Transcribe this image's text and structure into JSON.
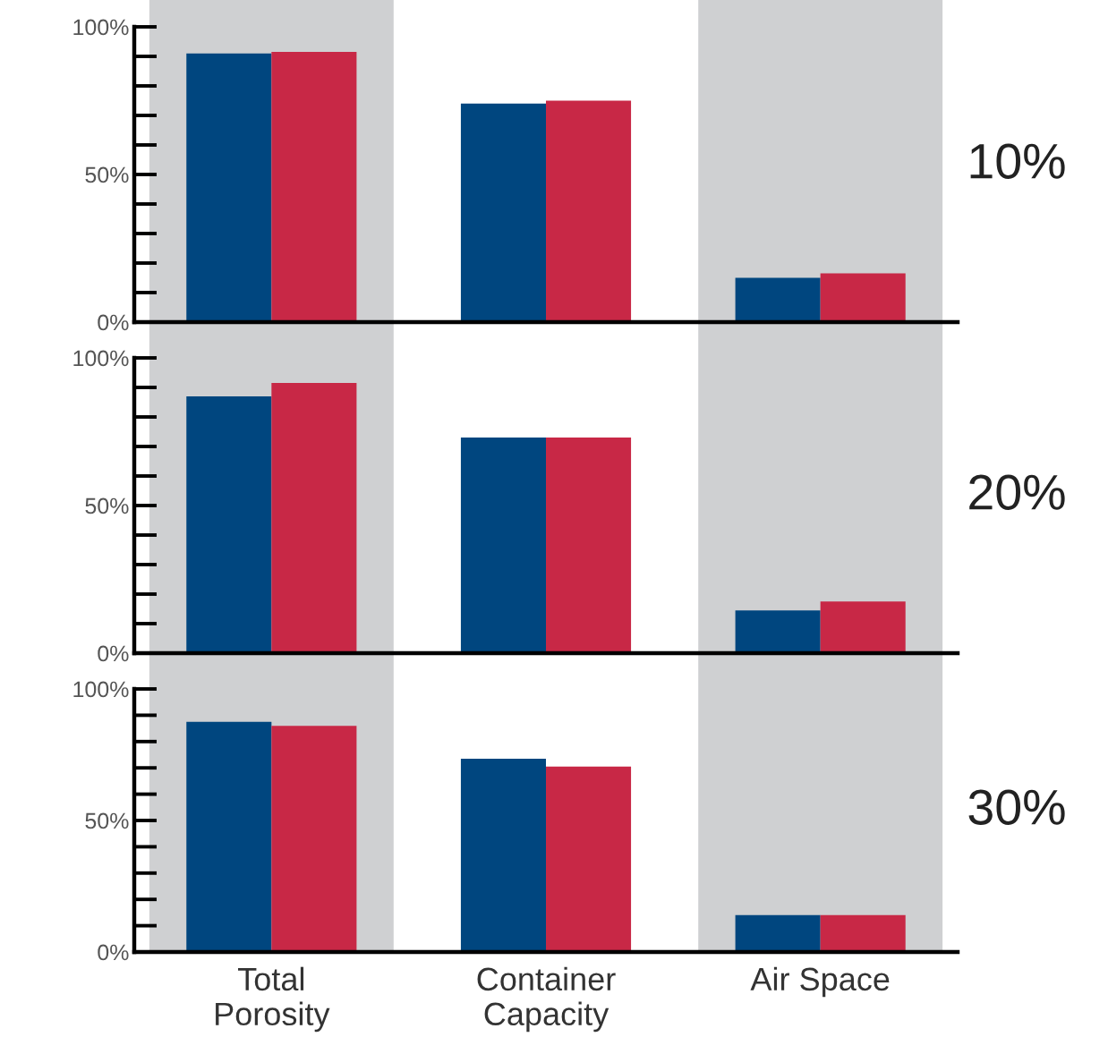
{
  "chart_data": [
    {
      "type": "bar",
      "categories": [
        "Total Porosity",
        "Container Capacity",
        "Air Space"
      ],
      "series": [
        {
          "color": "#00467f",
          "values": [
            91,
            74,
            15
          ]
        },
        {
          "color": "#c82846",
          "values": [
            91.5,
            75,
            16.5
          ]
        }
      ],
      "ylim": [
        0,
        100
      ],
      "yticks": [
        {
          "value": 0,
          "label": "0%"
        },
        {
          "value": 10,
          "label": null
        },
        {
          "value": 20,
          "label": null
        },
        {
          "value": 30,
          "label": null
        },
        {
          "value": 40,
          "label": null
        },
        {
          "value": 50,
          "label": "50%"
        },
        {
          "value": 60,
          "label": null
        },
        {
          "value": 70,
          "label": null
        },
        {
          "value": 80,
          "label": null
        },
        {
          "value": 90,
          "label": null
        },
        {
          "value": 100,
          "label": "100%"
        }
      ],
      "bands": [
        {
          "axis": "x",
          "from": "Total Porosity",
          "to": "Total Porosity",
          "color": "#cfd0d2"
        },
        {
          "axis": "x",
          "from": "Air Space",
          "to": "Air Space",
          "color": "#cfd0d2"
        }
      ],
      "annotations": [
        "10%"
      ],
      "tick_labels": "y",
      "grid": false,
      "legend": false
    },
    {
      "type": "bar",
      "categories": [
        "Total Porosity",
        "Container Capacity",
        "Air Space"
      ],
      "series": [
        {
          "color": "#00467f",
          "values": [
            87,
            73,
            14.5
          ]
        },
        {
          "color": "#c82846",
          "values": [
            91.5,
            73,
            17.5
          ]
        }
      ],
      "ylim": [
        0,
        100
      ],
      "yticks": [
        {
          "value": 0,
          "label": "0%"
        },
        {
          "value": 10,
          "label": null
        },
        {
          "value": 20,
          "label": null
        },
        {
          "value": 30,
          "label": null
        },
        {
          "value": 40,
          "label": null
        },
        {
          "value": 50,
          "label": "50%"
        },
        {
          "value": 60,
          "label": null
        },
        {
          "value": 70,
          "label": null
        },
        {
          "value": 80,
          "label": null
        },
        {
          "value": 90,
          "label": null
        },
        {
          "value": 100,
          "label": "100%"
        }
      ],
      "bands": [
        {
          "axis": "x",
          "from": "Total Porosity",
          "to": "Total Porosity",
          "color": "#cfd0d2"
        },
        {
          "axis": "x",
          "from": "Air Space",
          "to": "Air Space",
          "color": "#cfd0d2"
        }
      ],
      "annotations": [
        "20%"
      ],
      "tick_labels": "y",
      "grid": false,
      "legend": false
    },
    {
      "type": "bar",
      "categories": [
        "Total Porosity",
        "Container Capacity",
        "Air Space"
      ],
      "series": [
        {
          "color": "#00467f",
          "values": [
            87.5,
            73.5,
            14
          ]
        },
        {
          "color": "#c82846",
          "values": [
            86,
            70.5,
            14
          ]
        }
      ],
      "ylim": [
        0,
        100
      ],
      "yticks": [
        {
          "value": 0,
          "label": "0%"
        },
        {
          "value": 10,
          "label": null
        },
        {
          "value": 20,
          "label": null
        },
        {
          "value": 30,
          "label": null
        },
        {
          "value": 40,
          "label": null
        },
        {
          "value": 50,
          "label": "50%"
        },
        {
          "value": 60,
          "label": null
        },
        {
          "value": 70,
          "label": null
        },
        {
          "value": 80,
          "label": null
        },
        {
          "value": 90,
          "label": null
        },
        {
          "value": 100,
          "label": "100%"
        }
      ],
      "bands": [
        {
          "axis": "x",
          "from": "Total Porosity",
          "to": "Total Porosity",
          "color": "#cfd0d2"
        },
        {
          "axis": "x",
          "from": "Air Space",
          "to": "Air Space",
          "color": "#cfd0d2"
        }
      ],
      "annotations": [
        "30%"
      ],
      "grid": false,
      "legend": false
    }
  ]
}
